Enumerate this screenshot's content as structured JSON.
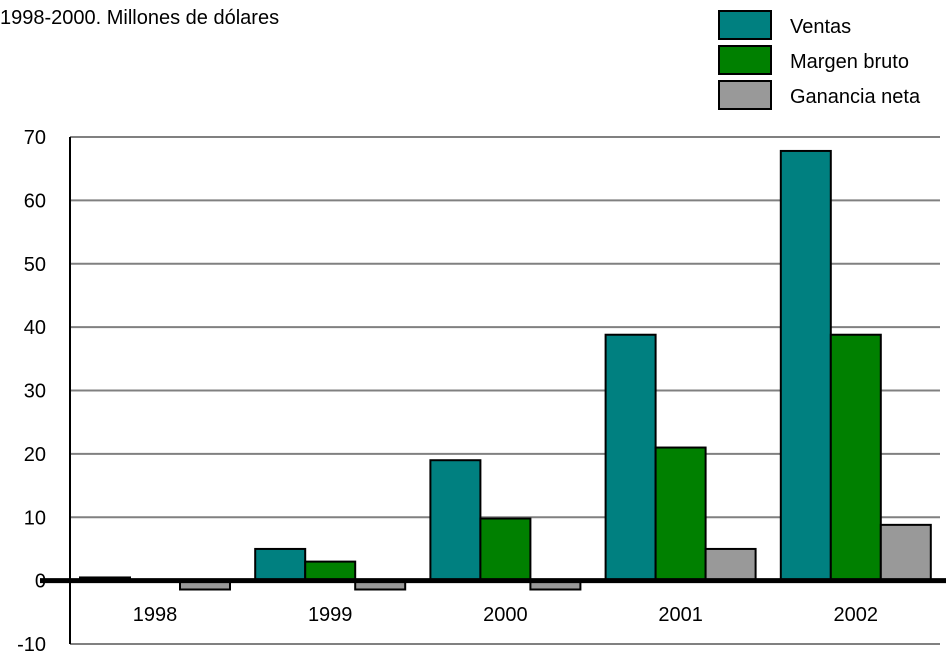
{
  "chart_data": {
    "type": "bar",
    "title": "1998-2000. Millones de dólares",
    "categories": [
      "1998",
      "1999",
      "2000",
      "2001",
      "2002"
    ],
    "series": [
      {
        "name": "Ventas",
        "values": [
          0.5,
          5,
          19,
          38.8,
          67.8
        ],
        "color": "#008080"
      },
      {
        "name": "Margen bruto",
        "values": [
          0,
          3,
          9.8,
          21,
          38.8
        ],
        "color": "#008000"
      },
      {
        "name": "Ganancia neta",
        "values": [
          -1.4,
          -1.4,
          -1.4,
          5,
          8.8
        ],
        "color": "#999999"
      }
    ],
    "ylim": [
      -10,
      70
    ],
    "yticks": [
      -10,
      0,
      10,
      20,
      30,
      40,
      50,
      60,
      70
    ],
    "grid": true,
    "legend_position": "top-right"
  }
}
